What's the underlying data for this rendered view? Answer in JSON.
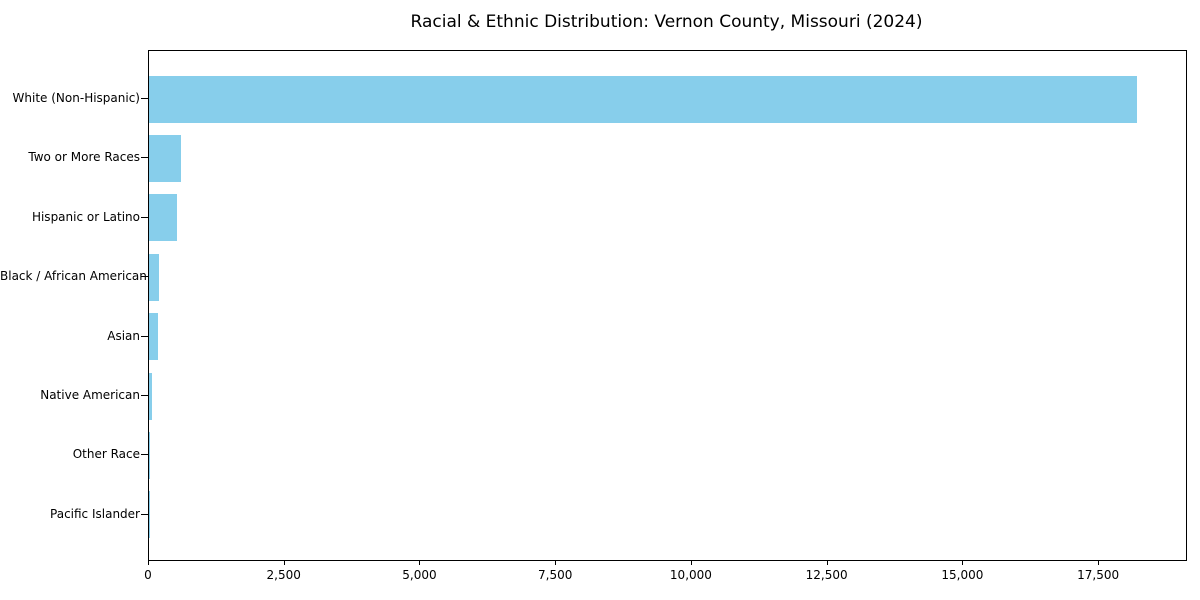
{
  "chart_data": {
    "type": "bar",
    "orientation": "horizontal",
    "title": "Racial & Ethnic Distribution: Vernon County, Missouri (2024)",
    "categories": [
      "White (Non-Hispanic)",
      "Two or More Races",
      "Hispanic or Latino",
      "Black / African American",
      "Asian",
      "Native American",
      "Other Race",
      "Pacific Islander"
    ],
    "values": [
      18200,
      590,
      520,
      180,
      160,
      50,
      15,
      5
    ],
    "xlabel": "",
    "ylabel": "",
    "xlim": [
      0,
      19100
    ],
    "x_ticks": [
      0,
      2500,
      5000,
      7500,
      10000,
      12500,
      15000,
      17500
    ],
    "x_tick_labels": [
      "0",
      "2,500",
      "5,000",
      "7,500",
      "10,000",
      "12,500",
      "15,000",
      "17,500"
    ],
    "bar_color": "#87CEEB",
    "background_color": "#ffffff",
    "grid": false,
    "legend": false
  }
}
